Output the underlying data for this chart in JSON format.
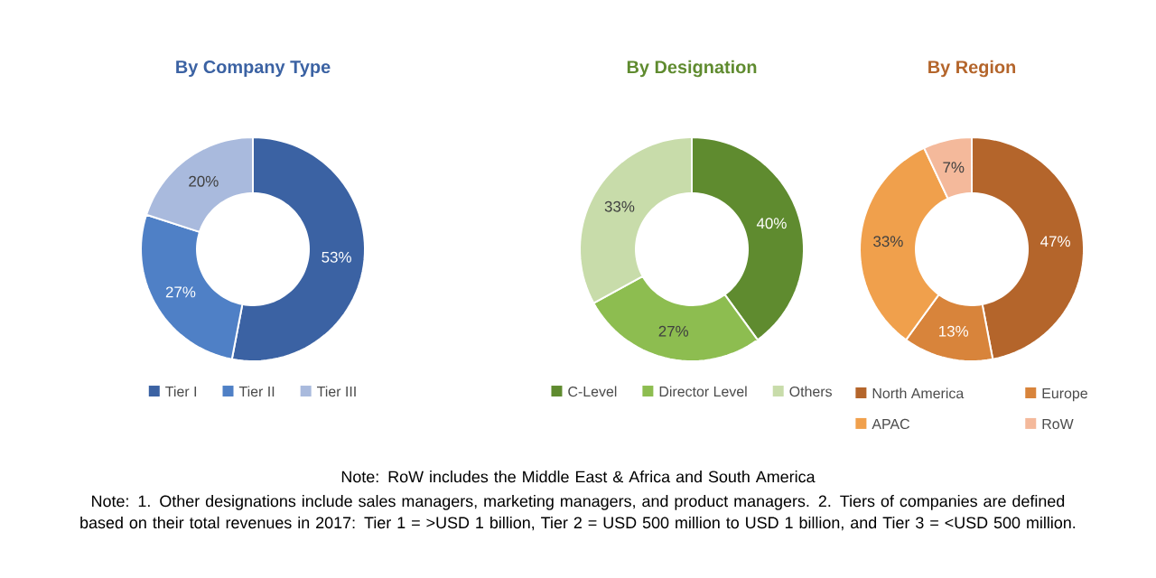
{
  "chart_data": [
    {
      "type": "donut",
      "title": "By Company Type",
      "categories": [
        "Tier I",
        "Tier II",
        "Tier III"
      ],
      "values": [
        53,
        27,
        20
      ],
      "value_labels": [
        "53%",
        "27%",
        "20%"
      ],
      "colors": [
        "#3b62a3",
        "#4f80c6",
        "#a9badd"
      ],
      "legend": "bottom"
    },
    {
      "type": "donut",
      "title": "By Designation",
      "categories": [
        "C-Level",
        "Director Level",
        "Others"
      ],
      "values": [
        40,
        27,
        33
      ],
      "value_labels": [
        "40%",
        "27%",
        "33%"
      ],
      "colors": [
        "#5f8b2f",
        "#8dbd50",
        "#c8dcaa"
      ],
      "legend": "bottom",
      "annotations": [
        "Note: RoW includes the Middle East & Africa and South America",
        "Note: 1. Other designations include sales managers, marketing managers, and product managers. 2. Tiers of companies are defined based on their total revenues in 2017: Tier 1 = >USD 1 billion, Tier 2 = USD 500 million to USD 1 billion, and Tier 3 = <USD 500 million."
      ]
    },
    {
      "type": "donut",
      "title": "By Region",
      "categories": [
        "North America",
        "Europe",
        "APAC",
        "RoW"
      ],
      "values": [
        47,
        13,
        33,
        7
      ],
      "value_labels": [
        "47%",
        "13%",
        "33%",
        "7%"
      ],
      "colors": [
        "#b4652b",
        "#d8843b",
        "#f0a04c",
        "#f4b99b"
      ],
      "legend": "bottom"
    }
  ]
}
